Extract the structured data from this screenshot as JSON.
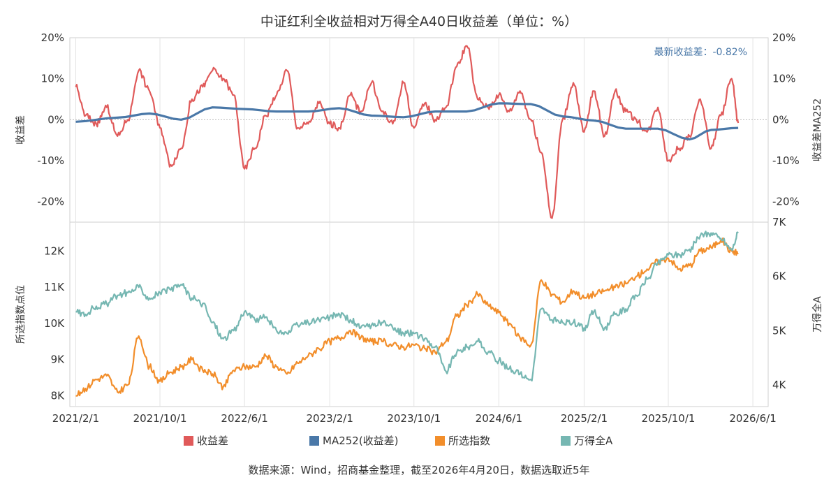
{
  "chart_data": [
    {
      "type": "line",
      "title": "中证红利全收益相对万得全A40日收益差（单位：%）",
      "ylabel": "收益差",
      "ylabel_right": "收益差MA252",
      "ylim": [
        -25,
        20
      ],
      "yticks": [
        -20,
        -10,
        0,
        10,
        20
      ],
      "ytick_labels": [
        "-20%",
        "-10%",
        "0%",
        "10%",
        "20%"
      ],
      "grid": true,
      "annotation": "最新收益差：-0.82%",
      "series": [
        {
          "name": "收益差",
          "color": "#e05a5a",
          "x": [
            "2021-02-01",
            "2021-03-01",
            "2021-04-01",
            "2021-05-01",
            "2021-06-01",
            "2021-07-01",
            "2021-08-01",
            "2021-09-01",
            "2021-10-01",
            "2021-11-01",
            "2021-12-01",
            "2022-01-01",
            "2022-02-01",
            "2022-03-01",
            "2022-04-01",
            "2022-05-01",
            "2022-06-01",
            "2022-07-01",
            "2022-08-01",
            "2022-09-01",
            "2022-10-01",
            "2022-11-01",
            "2022-12-01",
            "2023-01-01",
            "2023-02-01",
            "2023-03-01",
            "2023-04-01",
            "2023-05-01",
            "2023-06-01",
            "2023-07-01",
            "2023-08-01",
            "2023-09-01",
            "2023-10-01",
            "2023-11-01",
            "2023-12-01",
            "2024-01-01",
            "2024-02-01",
            "2024-03-01",
            "2024-04-01",
            "2024-05-01",
            "2024-06-01",
            "2024-07-01",
            "2024-08-01",
            "2024-09-01",
            "2024-10-01",
            "2024-11-01",
            "2024-12-01",
            "2025-01-01",
            "2025-02-01",
            "2025-03-01",
            "2025-04-01",
            "2025-05-01",
            "2025-06-01",
            "2025-07-01",
            "2025-08-01",
            "2025-09-01",
            "2025-10-01",
            "2025-11-01",
            "2025-12-01",
            "2026-01-01",
            "2026-02-01",
            "2026-03-01",
            "2026-04-01",
            "2026-04-20"
          ],
          "values": [
            8,
            1,
            -1,
            3,
            -4,
            0,
            12,
            7,
            -2,
            -11,
            -7,
            5,
            8,
            12,
            10,
            6,
            -12,
            -7,
            1,
            6,
            12,
            -2,
            -1,
            4,
            -1,
            -2,
            6,
            2,
            9,
            2,
            -1,
            9,
            -2,
            4,
            0,
            3,
            13,
            18,
            5,
            3,
            6,
            2,
            7,
            0,
            -8,
            -24,
            0,
            9,
            -3,
            7,
            -4,
            7,
            2,
            0,
            -3,
            3,
            -10,
            -7,
            -4,
            5,
            -7,
            1,
            10,
            -0.82
          ]
        },
        {
          "name": "MA252(收益差)",
          "color": "#4a78a8",
          "x": [
            "2021-02-01",
            "2021-06-01",
            "2021-09-01",
            "2021-12-01",
            "2022-03-01",
            "2022-06-01",
            "2022-09-01",
            "2022-12-01",
            "2023-03-01",
            "2023-06-01",
            "2023-09-01",
            "2023-12-01",
            "2024-03-01",
            "2024-06-01",
            "2024-09-01",
            "2024-12-01",
            "2025-03-01",
            "2025-06-01",
            "2025-09-01",
            "2025-12-01",
            "2026-02-01",
            "2026-04-20"
          ],
          "values": [
            -0.5,
            0.5,
            1.5,
            0.0,
            3.0,
            2.6,
            2.0,
            2.0,
            2.8,
            1.0,
            0.6,
            2.0,
            2.0,
            4.0,
            3.8,
            0.8,
            -0.2,
            -2.2,
            -2.2,
            -4.8,
            -2.5,
            -2.0
          ]
        }
      ]
    },
    {
      "type": "line",
      "ylabel": "所选指数点位",
      "ylabel_right": "万得全A",
      "ylim": [
        7700,
        12800
      ],
      "yticks": [
        8000,
        9000,
        10000,
        11000,
        12000
      ],
      "ytick_labels": [
        "8K",
        "9K",
        "10K",
        "11K",
        "12K"
      ],
      "ylim_right": [
        3600,
        7000
      ],
      "yticks_right": [
        4000,
        5000,
        6000,
        7000
      ],
      "ytick_labels_right": [
        "4K",
        "5K",
        "6K",
        "7K"
      ],
      "grid": true,
      "series": [
        {
          "name": "所选指数",
          "color": "#f28e2b",
          "axis": "left",
          "x": [
            "2021-02-01",
            "2021-03-01",
            "2021-04-01",
            "2021-05-01",
            "2021-06-01",
            "2021-07-01",
            "2021-08-01",
            "2021-09-01",
            "2021-10-01",
            "2021-11-01",
            "2021-12-01",
            "2022-01-01",
            "2022-02-01",
            "2022-03-01",
            "2022-04-01",
            "2022-05-01",
            "2022-06-01",
            "2022-07-01",
            "2022-08-01",
            "2022-09-01",
            "2022-10-01",
            "2022-11-01",
            "2022-12-01",
            "2023-01-01",
            "2023-02-01",
            "2023-03-01",
            "2023-04-01",
            "2023-05-01",
            "2023-06-01",
            "2023-07-01",
            "2023-08-01",
            "2023-09-01",
            "2023-10-01",
            "2023-11-01",
            "2023-12-01",
            "2024-01-01",
            "2024-02-01",
            "2024-03-01",
            "2024-04-01",
            "2024-05-01",
            "2024-06-01",
            "2024-07-01",
            "2024-08-01",
            "2024-09-01",
            "2024-10-01",
            "2024-11-01",
            "2024-12-01",
            "2025-01-01",
            "2025-02-01",
            "2025-03-01",
            "2025-04-01",
            "2025-05-01",
            "2025-06-01",
            "2025-07-01",
            "2025-08-01",
            "2025-09-01",
            "2025-10-01",
            "2025-11-01",
            "2025-12-01",
            "2026-01-01",
            "2026-02-01",
            "2026-03-01",
            "2026-04-01",
            "2026-04-20"
          ],
          "values": [
            8000,
            8200,
            8450,
            8550,
            8100,
            8300,
            9650,
            8800,
            8400,
            8650,
            8800,
            9000,
            8700,
            8600,
            8250,
            8700,
            8800,
            8800,
            9100,
            8800,
            8600,
            8900,
            9100,
            9300,
            9500,
            9600,
            9800,
            9600,
            9500,
            9500,
            9400,
            9350,
            9400,
            9300,
            9200,
            9500,
            10200,
            10500,
            10800,
            10500,
            10300,
            10000,
            9600,
            9400,
            11200,
            10800,
            10600,
            10900,
            10700,
            10800,
            10900,
            11000,
            11100,
            11300,
            11500,
            11700,
            11800,
            11500,
            11600,
            12000,
            12100,
            12300,
            12000,
            11950
          ]
        },
        {
          "name": "万得全A",
          "color": "#76b7b2",
          "axis": "right",
          "x": [
            "2021-02-01",
            "2021-03-01",
            "2021-04-01",
            "2021-05-01",
            "2021-06-01",
            "2021-07-01",
            "2021-08-01",
            "2021-09-01",
            "2021-10-01",
            "2021-11-01",
            "2021-12-01",
            "2022-01-01",
            "2022-02-01",
            "2022-03-01",
            "2022-04-01",
            "2022-05-01",
            "2022-06-01",
            "2022-07-01",
            "2022-08-01",
            "2022-09-01",
            "2022-10-01",
            "2022-11-01",
            "2022-12-01",
            "2023-01-01",
            "2023-02-01",
            "2023-03-01",
            "2023-04-01",
            "2023-05-01",
            "2023-06-01",
            "2023-07-01",
            "2023-08-01",
            "2023-09-01",
            "2023-10-01",
            "2023-11-01",
            "2023-12-01",
            "2024-01-01",
            "2024-02-01",
            "2024-03-01",
            "2024-04-01",
            "2024-05-01",
            "2024-06-01",
            "2024-07-01",
            "2024-08-01",
            "2024-09-01",
            "2024-10-01",
            "2024-11-01",
            "2024-12-01",
            "2025-01-01",
            "2025-02-01",
            "2025-03-01",
            "2025-04-01",
            "2025-05-01",
            "2025-06-01",
            "2025-07-01",
            "2025-08-01",
            "2025-09-01",
            "2025-10-01",
            "2025-11-01",
            "2025-12-01",
            "2026-01-01",
            "2026-02-01",
            "2026-03-01",
            "2026-04-01",
            "2026-04-20"
          ],
          "values": [
            5350,
            5300,
            5450,
            5500,
            5650,
            5700,
            5800,
            5600,
            5700,
            5750,
            5850,
            5600,
            5500,
            5150,
            4850,
            5000,
            5350,
            5200,
            5250,
            5000,
            4950,
            5100,
            5150,
            5200,
            5250,
            5300,
            5200,
            5050,
            5100,
            5150,
            5050,
            4950,
            4950,
            4850,
            4700,
            4250,
            4600,
            4700,
            4800,
            4600,
            4450,
            4300,
            4200,
            4100,
            5400,
            5200,
            5150,
            5150,
            5050,
            5350,
            5050,
            5300,
            5400,
            5650,
            5950,
            6250,
            6400,
            6400,
            6500,
            6750,
            6800,
            6700,
            6500,
            6800
          ]
        }
      ]
    }
  ],
  "x_axis": {
    "tick_labels": [
      "2021/2/1",
      "2021/10/1",
      "2022/6/1",
      "2023/2/1",
      "2023/10/1",
      "2024/6/1",
      "2025/2/1",
      "2025/10/1",
      "2026/6/1"
    ],
    "tick_dates": [
      "2021-02-01",
      "2021-10-01",
      "2022-06-01",
      "2023-02-01",
      "2023-10-01",
      "2024-06-01",
      "2025-02-01",
      "2025-10-01",
      "2026-06-01"
    ],
    "range": [
      "2021-01-15",
      "2026-07-15"
    ]
  },
  "legend": {
    "placement": "bottom",
    "items": [
      {
        "label": "收益差",
        "color": "#e05a5a"
      },
      {
        "label": "MA252(收益差)",
        "color": "#4a78a8"
      },
      {
        "label": "所选指数",
        "color": "#f28e2b"
      },
      {
        "label": "万得全A",
        "color": "#76b7b2"
      }
    ]
  },
  "source_note": "数据来源：Wind，招商基金整理，截至2026年4月20日，数据选取近5年",
  "annotation_color": "#4a78a8"
}
